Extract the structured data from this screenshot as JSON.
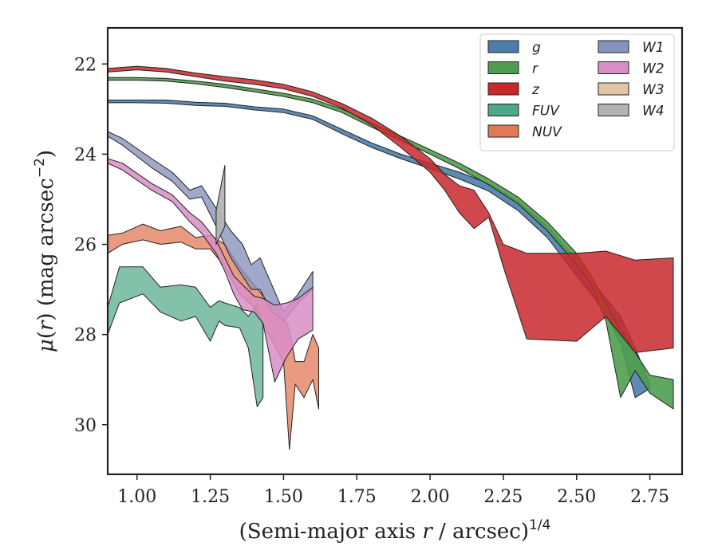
{
  "chart_data": {
    "type": "area",
    "xlabel": "(Semi-major axis r / arcsec)",
    "xlabel_parts": {
      "prefix": "(Semi-major axis ",
      "var": "r",
      "suffix": " / arcsec)",
      "sup": "1/4"
    },
    "ylabel": "μ(r) (mag arcsec⁻²)",
    "ylabel_parts": {
      "mu": "μ",
      "open": "(",
      "var": "r",
      "close": ")",
      "rest": " (mag arcsec",
      "sup": "−2",
      "end": ")"
    },
    "xlim": [
      0.9,
      2.86
    ],
    "ylim": [
      31.1,
      21.2
    ],
    "y_inverted": true,
    "xticks": [
      1.0,
      1.25,
      1.5,
      1.75,
      2.0,
      2.25,
      2.5,
      2.75
    ],
    "xtick_labels": [
      "1.00",
      "1.25",
      "1.50",
      "1.75",
      "2.00",
      "2.25",
      "2.50",
      "2.75"
    ],
    "yticks": [
      22,
      24,
      26,
      28,
      30
    ],
    "ytick_labels": [
      "22",
      "24",
      "26",
      "28",
      "30"
    ],
    "grid": false,
    "legend_position": "top-right",
    "legend_columns": 2,
    "series": [
      {
        "name": "FUV",
        "color": "#4fa788",
        "opacity": 0.7,
        "upper": [
          [
            0.9,
            27.4
          ],
          [
            0.94,
            26.5
          ],
          [
            1.02,
            26.5
          ],
          [
            1.08,
            26.95
          ],
          [
            1.15,
            26.9
          ],
          [
            1.2,
            26.95
          ],
          [
            1.25,
            27.4
          ],
          [
            1.28,
            27.25
          ],
          [
            1.3,
            27.3
          ],
          [
            1.35,
            27.4
          ],
          [
            1.38,
            27.6
          ],
          [
            1.41,
            27.3
          ],
          [
            1.43,
            27.8
          ]
        ],
        "lower": [
          [
            0.9,
            28.0
          ],
          [
            0.94,
            27.3
          ],
          [
            1.02,
            27.1
          ],
          [
            1.08,
            27.5
          ],
          [
            1.15,
            27.7
          ],
          [
            1.2,
            27.6
          ],
          [
            1.25,
            28.15
          ],
          [
            1.28,
            27.7
          ],
          [
            1.3,
            27.8
          ],
          [
            1.35,
            27.85
          ],
          [
            1.38,
            28.3
          ],
          [
            1.41,
            29.6
          ],
          [
            1.43,
            29.4
          ]
        ]
      },
      {
        "name": "NUV",
        "color": "#e07a55",
        "opacity": 0.75,
        "upper": [
          [
            0.9,
            25.8
          ],
          [
            0.95,
            25.75
          ],
          [
            1.02,
            25.55
          ],
          [
            1.08,
            25.7
          ],
          [
            1.15,
            25.6
          ],
          [
            1.2,
            25.85
          ],
          [
            1.25,
            25.8
          ],
          [
            1.3,
            26.0
          ],
          [
            1.35,
            26.5
          ],
          [
            1.4,
            26.9
          ],
          [
            1.45,
            27.3
          ],
          [
            1.5,
            27.6
          ],
          [
            1.52,
            27.9
          ],
          [
            1.54,
            28.6
          ],
          [
            1.57,
            28.6
          ],
          [
            1.6,
            28.0
          ],
          [
            1.62,
            28.3
          ]
        ],
        "lower": [
          [
            0.9,
            26.2
          ],
          [
            0.95,
            26.0
          ],
          [
            1.02,
            25.9
          ],
          [
            1.08,
            26.0
          ],
          [
            1.15,
            25.95
          ],
          [
            1.2,
            26.1
          ],
          [
            1.25,
            26.1
          ],
          [
            1.3,
            26.5
          ],
          [
            1.35,
            27.1
          ],
          [
            1.4,
            27.4
          ],
          [
            1.45,
            28.0
          ],
          [
            1.5,
            28.6
          ],
          [
            1.52,
            30.55
          ],
          [
            1.54,
            29.1
          ],
          [
            1.57,
            29.4
          ],
          [
            1.6,
            29.0
          ],
          [
            1.62,
            29.65
          ]
        ]
      },
      {
        "name": "W1",
        "color": "#8893bd",
        "opacity": 0.8,
        "upper": [
          [
            0.9,
            23.5
          ],
          [
            0.95,
            23.65
          ],
          [
            1.05,
            24.1
          ],
          [
            1.12,
            24.4
          ],
          [
            1.18,
            24.8
          ],
          [
            1.22,
            24.7
          ],
          [
            1.27,
            25.2
          ],
          [
            1.32,
            25.7
          ],
          [
            1.36,
            26.0
          ],
          [
            1.39,
            26.45
          ],
          [
            1.42,
            26.3
          ],
          [
            1.46,
            26.9
          ],
          [
            1.5,
            27.5
          ],
          [
            1.55,
            27.1
          ],
          [
            1.6,
            26.6
          ]
        ],
        "lower": [
          [
            0.9,
            23.6
          ],
          [
            0.95,
            23.8
          ],
          [
            1.05,
            24.3
          ],
          [
            1.12,
            24.6
          ],
          [
            1.18,
            25.0
          ],
          [
            1.22,
            24.95
          ],
          [
            1.27,
            25.6
          ],
          [
            1.32,
            26.3
          ],
          [
            1.36,
            26.7
          ],
          [
            1.39,
            27.0
          ],
          [
            1.42,
            27.0
          ],
          [
            1.46,
            27.5
          ],
          [
            1.5,
            27.7
          ],
          [
            1.55,
            27.3
          ],
          [
            1.6,
            27.0
          ]
        ]
      },
      {
        "name": "W2",
        "color": "#d98ec6",
        "opacity": 0.85,
        "upper": [
          [
            0.9,
            24.1
          ],
          [
            0.95,
            24.2
          ],
          [
            1.05,
            24.65
          ],
          [
            1.12,
            24.9
          ],
          [
            1.18,
            25.3
          ],
          [
            1.22,
            25.5
          ],
          [
            1.27,
            25.9
          ],
          [
            1.3,
            26.3
          ],
          [
            1.33,
            26.7
          ],
          [
            1.36,
            26.9
          ],
          [
            1.4,
            27.15
          ],
          [
            1.43,
            27.2
          ],
          [
            1.47,
            27.35
          ],
          [
            1.51,
            27.3
          ],
          [
            1.55,
            27.2
          ],
          [
            1.6,
            26.95
          ]
        ],
        "lower": [
          [
            0.9,
            24.2
          ],
          [
            0.95,
            24.35
          ],
          [
            1.05,
            24.8
          ],
          [
            1.12,
            25.05
          ],
          [
            1.18,
            25.5
          ],
          [
            1.22,
            25.75
          ],
          [
            1.27,
            26.2
          ],
          [
            1.3,
            26.6
          ],
          [
            1.33,
            27.1
          ],
          [
            1.36,
            27.45
          ],
          [
            1.4,
            27.5
          ],
          [
            1.43,
            27.75
          ],
          [
            1.47,
            29.05
          ],
          [
            1.51,
            28.5
          ],
          [
            1.55,
            28.1
          ],
          [
            1.6,
            27.9
          ]
        ]
      },
      {
        "name": "W3",
        "color": "#e0c6a6",
        "opacity": 0.9,
        "upper": [],
        "lower": []
      },
      {
        "name": "W4",
        "color": "#b3b3b3",
        "opacity": 0.95,
        "upper": [
          [
            1.27,
            25.25
          ],
          [
            1.3,
            24.25
          ]
        ],
        "lower": [
          [
            1.27,
            26.0
          ],
          [
            1.3,
            25.6
          ]
        ]
      },
      {
        "name": "g",
        "color": "#4c7eac",
        "opacity": 0.9,
        "upper": [
          [
            0.9,
            22.8
          ],
          [
            1.0,
            22.8
          ],
          [
            1.1,
            22.8
          ],
          [
            1.2,
            22.85
          ],
          [
            1.3,
            22.87
          ],
          [
            1.4,
            22.95
          ],
          [
            1.5,
            23.0
          ],
          [
            1.6,
            23.15
          ],
          [
            1.7,
            23.45
          ],
          [
            1.8,
            23.75
          ],
          [
            1.9,
            24.0
          ],
          [
            2.0,
            24.2
          ],
          [
            2.1,
            24.4
          ],
          [
            2.2,
            24.65
          ],
          [
            2.3,
            25.05
          ],
          [
            2.4,
            25.6
          ],
          [
            2.5,
            26.35
          ],
          [
            2.55,
            26.8
          ],
          [
            2.6,
            27.2
          ],
          [
            2.65,
            27.6
          ],
          [
            2.7,
            28.3
          ],
          [
            2.75,
            29.1
          ]
        ],
        "lower": [
          [
            0.9,
            22.86
          ],
          [
            1.0,
            22.86
          ],
          [
            1.1,
            22.87
          ],
          [
            1.2,
            22.92
          ],
          [
            1.3,
            22.94
          ],
          [
            1.4,
            23.02
          ],
          [
            1.5,
            23.08
          ],
          [
            1.6,
            23.23
          ],
          [
            1.7,
            23.55
          ],
          [
            1.8,
            23.85
          ],
          [
            1.9,
            24.1
          ],
          [
            2.0,
            24.32
          ],
          [
            2.1,
            24.55
          ],
          [
            2.2,
            24.82
          ],
          [
            2.3,
            25.25
          ],
          [
            2.4,
            25.85
          ],
          [
            2.5,
            26.7
          ],
          [
            2.55,
            27.1
          ],
          [
            2.6,
            27.55
          ],
          [
            2.65,
            28.2
          ],
          [
            2.7,
            29.4
          ],
          [
            2.75,
            29.2
          ]
        ]
      },
      {
        "name": "r",
        "color": "#4f9d4f",
        "opacity": 0.9,
        "upper": [
          [
            0.9,
            22.3
          ],
          [
            1.0,
            22.3
          ],
          [
            1.1,
            22.32
          ],
          [
            1.2,
            22.38
          ],
          [
            1.3,
            22.45
          ],
          [
            1.4,
            22.55
          ],
          [
            1.5,
            22.65
          ],
          [
            1.6,
            22.78
          ],
          [
            1.7,
            23.0
          ],
          [
            1.8,
            23.3
          ],
          [
            1.9,
            23.6
          ],
          [
            2.0,
            23.9
          ],
          [
            2.1,
            24.2
          ],
          [
            2.2,
            24.55
          ],
          [
            2.3,
            24.95
          ],
          [
            2.4,
            25.5
          ],
          [
            2.5,
            26.2
          ],
          [
            2.55,
            26.7
          ],
          [
            2.6,
            27.3
          ],
          [
            2.65,
            27.9
          ],
          [
            2.7,
            28.4
          ],
          [
            2.75,
            28.9
          ],
          [
            2.83,
            29.0
          ]
        ],
        "lower": [
          [
            0.9,
            22.36
          ],
          [
            1.0,
            22.36
          ],
          [
            1.1,
            22.38
          ],
          [
            1.2,
            22.44
          ],
          [
            1.3,
            22.52
          ],
          [
            1.4,
            22.62
          ],
          [
            1.5,
            22.72
          ],
          [
            1.6,
            22.86
          ],
          [
            1.7,
            23.08
          ],
          [
            1.8,
            23.4
          ],
          [
            1.9,
            23.7
          ],
          [
            2.0,
            24.0
          ],
          [
            2.1,
            24.32
          ],
          [
            2.2,
            24.68
          ],
          [
            2.3,
            25.1
          ],
          [
            2.4,
            25.7
          ],
          [
            2.5,
            26.45
          ],
          [
            2.55,
            26.9
          ],
          [
            2.6,
            27.7
          ],
          [
            2.65,
            29.4
          ],
          [
            2.7,
            28.8
          ],
          [
            2.75,
            29.3
          ],
          [
            2.83,
            29.65
          ]
        ]
      },
      {
        "name": "z",
        "color": "#c8282c",
        "opacity": 0.85,
        "upper": [
          [
            0.9,
            22.1
          ],
          [
            1.0,
            22.05
          ],
          [
            1.1,
            22.1
          ],
          [
            1.2,
            22.2
          ],
          [
            1.3,
            22.28
          ],
          [
            1.4,
            22.35
          ],
          [
            1.5,
            22.45
          ],
          [
            1.6,
            22.62
          ],
          [
            1.7,
            22.88
          ],
          [
            1.8,
            23.2
          ],
          [
            1.9,
            23.6
          ],
          [
            2.0,
            24.1
          ],
          [
            2.05,
            24.45
          ],
          [
            2.1,
            24.7
          ],
          [
            2.15,
            24.8
          ],
          [
            2.2,
            25.3
          ],
          [
            2.25,
            26.0
          ],
          [
            2.33,
            26.2
          ],
          [
            2.5,
            26.2
          ],
          [
            2.6,
            26.15
          ],
          [
            2.7,
            26.35
          ],
          [
            2.83,
            26.3
          ]
        ],
        "lower": [
          [
            0.9,
            22.18
          ],
          [
            1.0,
            22.13
          ],
          [
            1.1,
            22.18
          ],
          [
            1.2,
            22.28
          ],
          [
            1.3,
            22.38
          ],
          [
            1.4,
            22.45
          ],
          [
            1.5,
            22.55
          ],
          [
            1.6,
            22.72
          ],
          [
            1.7,
            22.98
          ],
          [
            1.8,
            23.35
          ],
          [
            1.9,
            23.85
          ],
          [
            2.0,
            24.4
          ],
          [
            2.05,
            24.8
          ],
          [
            2.1,
            25.3
          ],
          [
            2.15,
            25.65
          ],
          [
            2.2,
            25.4
          ],
          [
            2.25,
            26.5
          ],
          [
            2.33,
            28.1
          ],
          [
            2.5,
            28.15
          ],
          [
            2.6,
            27.6
          ],
          [
            2.7,
            28.4
          ],
          [
            2.83,
            28.3
          ]
        ]
      }
    ],
    "legend_items": [
      {
        "name": "g",
        "color": "#4c7eac",
        "col": 0,
        "row": 0
      },
      {
        "name": "r",
        "color": "#4f9d4f",
        "col": 0,
        "row": 1
      },
      {
        "name": "z",
        "color": "#c8282c",
        "col": 0,
        "row": 2
      },
      {
        "name": "FUV",
        "color": "#4fa788",
        "col": 0,
        "row": 3
      },
      {
        "name": "NUV",
        "color": "#e07a55",
        "col": 0,
        "row": 4
      },
      {
        "name": "W1",
        "color": "#8893bd",
        "col": 1,
        "row": 0
      },
      {
        "name": "W2",
        "color": "#d98ec6",
        "col": 1,
        "row": 1
      },
      {
        "name": "W3",
        "color": "#e0c6a6",
        "col": 1,
        "row": 2
      },
      {
        "name": "W4",
        "color": "#b3b3b3",
        "col": 1,
        "row": 3
      }
    ]
  }
}
